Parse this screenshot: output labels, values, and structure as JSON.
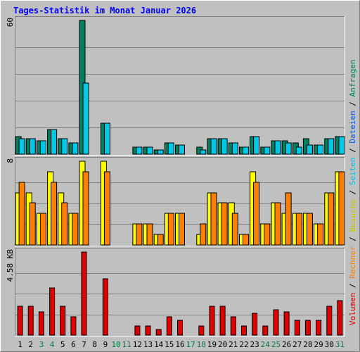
{
  "chart_data": {
    "type": "bar",
    "title": "Tages-Statistik im Monat Januar 2026",
    "days": [
      "1",
      "2",
      "3",
      "4",
      "5",
      "6",
      "7",
      "8",
      "9",
      "10",
      "11",
      "12",
      "13",
      "14",
      "15",
      "16",
      "17",
      "18",
      "19",
      "20",
      "21",
      "22",
      "23",
      "24",
      "25",
      "26",
      "27",
      "28",
      "29",
      "30",
      "31"
    ],
    "weekend_days": [
      "3",
      "4",
      "10",
      "11",
      "17",
      "18",
      "24",
      "25",
      "31"
    ],
    "colors": {
      "anfragen": "#008060",
      "dateien": "#00c8e8",
      "seiten": "#00c8e8",
      "besuche": "#ffff00",
      "rechner": "#ff8000",
      "volumen": "#e00000",
      "title": "#0000ff",
      "weekend_label": "#008040",
      "weekday_label": "#000000"
    },
    "panels": [
      {
        "id": "hits",
        "ymax_label": "60",
        "ymax": 60,
        "series": [
          {
            "name": "Anfragen",
            "values": [
              8,
              7,
              6,
              11,
              7,
              5,
              60,
              0,
              14,
              0,
              0,
              3,
              3,
              2,
              5,
              4,
              0,
              3,
              7,
              7,
              5,
              3,
              8,
              3,
              6,
              6,
              5,
              7,
              4,
              7,
              8
            ]
          },
          {
            "name": "Dateien",
            "values": [
              7,
              7,
              6,
              11,
              7,
              5,
              32,
              0,
              14,
              0,
              0,
              3,
              3,
              2,
              5,
              4,
              0,
              2,
              7,
              7,
              5,
              3,
              8,
              3,
              6,
              5,
              3,
              4,
              4,
              7,
              8
            ]
          }
        ]
      },
      {
        "id": "visits",
        "ymax_label": "8",
        "ymax": 8,
        "series": [
          {
            "name": "Besuche",
            "values": [
              5,
              5,
              3,
              7,
              5,
              3,
              8,
              0,
              8,
              0,
              0,
              2,
              2,
              1,
              3,
              3,
              0,
              1,
              5,
              4,
              4,
              1,
              7,
              2,
              4,
              3,
              3,
              3,
              2,
              5,
              7
            ]
          },
          {
            "name": "Rechner",
            "values": [
              6,
              4,
              3,
              6,
              4,
              3,
              7,
              0,
              7,
              0,
              0,
              2,
              2,
              1,
              3,
              3,
              0,
              2,
              5,
              4,
              3,
              1,
              6,
              2,
              4,
              5,
              3,
              3,
              2,
              5,
              7
            ]
          }
        ]
      },
      {
        "id": "volume",
        "ymax_label": "4.58 KB",
        "ymax": 4.58,
        "series": [
          {
            "name": "Volumen",
            "values": [
              1.6,
              1.6,
              1.3,
              2.6,
              1.6,
              1.0,
              4.58,
              0,
              3.1,
              0,
              0,
              0.5,
              0.5,
              0.3,
              1.0,
              0.8,
              0,
              0.5,
              1.6,
              1.6,
              1.0,
              0.5,
              1.2,
              0.5,
              1.4,
              1.3,
              0.8,
              0.8,
              0.8,
              1.6,
              1.9
            ]
          }
        ]
      }
    ],
    "legend_right": [
      "Anfragen",
      "Dateien",
      "Seiten",
      "Besuche",
      "Rechner",
      "Volumen"
    ],
    "legend_separator": " / "
  }
}
